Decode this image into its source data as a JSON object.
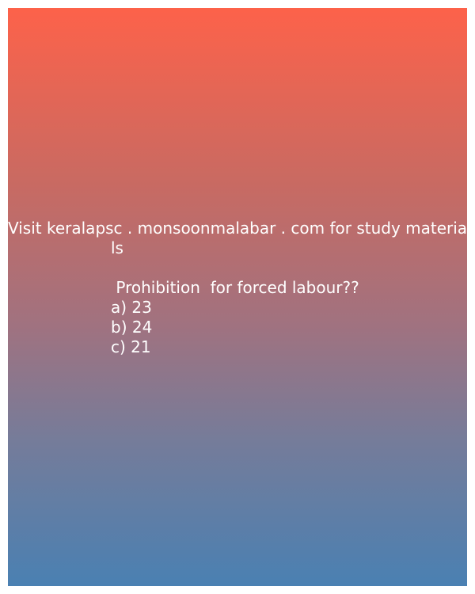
{
  "header": {
    "line1": "Visit keralapsc . monsoonmalabar . com for study materia",
    "line2": "ls"
  },
  "question": {
    "text": " Prohibition  for forced labour??",
    "options": [
      "a) 23",
      "b) 24",
      "c) 21"
    ]
  }
}
